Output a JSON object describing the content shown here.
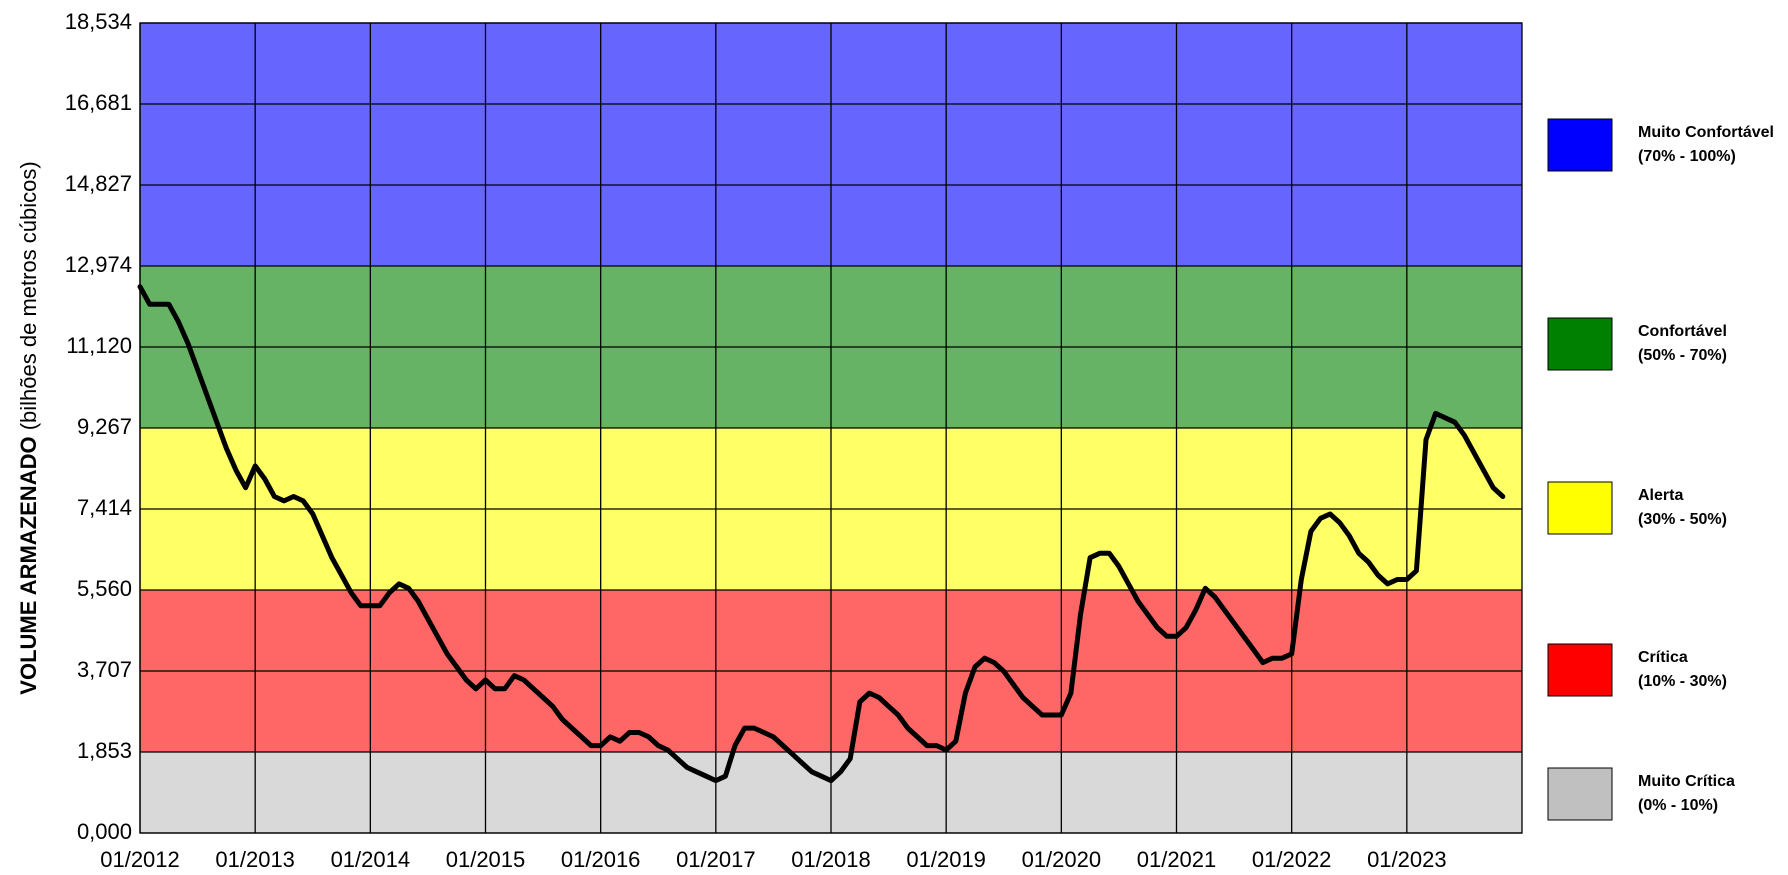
{
  "chart_data": {
    "type": "line",
    "ylabel_main": "VOLUME ARMAZENADO",
    "ylabel_unit": " (bilhões de metros cúbicos)",
    "color": "#000000",
    "grid": true,
    "legend": "right",
    "bands": [
      {
        "name": "Muito Confortável",
        "range": "(70% - 100%)",
        "from": 12.974,
        "to": 18.534,
        "color": "#0000ff"
      },
      {
        "name": "Confortável",
        "range": "(50% - 70%)",
        "from": 9.267,
        "to": 12.974,
        "color": "#008000"
      },
      {
        "name": "Alerta",
        "range": "(30% - 50%)",
        "from": 5.56,
        "to": 9.267,
        "color": "#ffff00"
      },
      {
        "name": "Crítica",
        "range": "(10% - 30%)",
        "from": 1.853,
        "to": 5.56,
        "color": "#ff0000"
      },
      {
        "name": "Muito Crítica",
        "range": "(0% - 10%)",
        "from": 0,
        "to": 1.853,
        "color": "#c0c0c0"
      }
    ],
    "ylim": [
      0,
      18.534
    ],
    "yticks": [
      {
        "value": 0,
        "label": "0,000"
      },
      {
        "value": 1.853,
        "label": "1,853"
      },
      {
        "value": 3.707,
        "label": "3,707"
      },
      {
        "value": 5.56,
        "label": "5,560"
      },
      {
        "value": 7.414,
        "label": "7,414"
      },
      {
        "value": 9.267,
        "label": "9,267"
      },
      {
        "value": 11.12,
        "label": "11,120"
      },
      {
        "value": 12.974,
        "label": "12,974"
      },
      {
        "value": 14.827,
        "label": "14,827"
      },
      {
        "value": 16.681,
        "label": "16,681"
      },
      {
        "value": 18.534,
        "label": "18,534"
      }
    ],
    "xlim": [
      "2012-01",
      "2024-01"
    ],
    "xticks": [
      {
        "value": "2012-01",
        "label": "01/2012"
      },
      {
        "value": "2013-01",
        "label": "01/2013"
      },
      {
        "value": "2014-01",
        "label": "01/2014"
      },
      {
        "value": "2015-01",
        "label": "01/2015"
      },
      {
        "value": "2016-01",
        "label": "01/2016"
      },
      {
        "value": "2017-01",
        "label": "01/2017"
      },
      {
        "value": "2018-01",
        "label": "01/2018"
      },
      {
        "value": "2019-01",
        "label": "01/2019"
      },
      {
        "value": "2020-01",
        "label": "01/2020"
      },
      {
        "value": "2021-01",
        "label": "01/2021"
      },
      {
        "value": "2022-01",
        "label": "01/2022"
      },
      {
        "value": "2023-01",
        "label": "01/2023"
      }
    ],
    "x": [
      "2012-01",
      "2012-02",
      "2012-03",
      "2012-04",
      "2012-05",
      "2012-06",
      "2012-07",
      "2012-08",
      "2012-09",
      "2012-10",
      "2012-11",
      "2012-12",
      "2013-01",
      "2013-02",
      "2013-03",
      "2013-04",
      "2013-05",
      "2013-06",
      "2013-07",
      "2013-08",
      "2013-09",
      "2013-10",
      "2013-11",
      "2013-12",
      "2014-01",
      "2014-02",
      "2014-03",
      "2014-04",
      "2014-05",
      "2014-06",
      "2014-07",
      "2014-08",
      "2014-09",
      "2014-10",
      "2014-11",
      "2014-12",
      "2015-01",
      "2015-02",
      "2015-03",
      "2015-04",
      "2015-05",
      "2015-06",
      "2015-07",
      "2015-08",
      "2015-09",
      "2015-10",
      "2015-11",
      "2015-12",
      "2016-01",
      "2016-02",
      "2016-03",
      "2016-04",
      "2016-05",
      "2016-06",
      "2016-07",
      "2016-08",
      "2016-09",
      "2016-10",
      "2016-11",
      "2016-12",
      "2017-01",
      "2017-02",
      "2017-03",
      "2017-04",
      "2017-05",
      "2017-06",
      "2017-07",
      "2017-08",
      "2017-09",
      "2017-10",
      "2017-11",
      "2017-12",
      "2018-01",
      "2018-02",
      "2018-03",
      "2018-04",
      "2018-05",
      "2018-06",
      "2018-07",
      "2018-08",
      "2018-09",
      "2018-10",
      "2018-11",
      "2018-12",
      "2019-01",
      "2019-02",
      "2019-03",
      "2019-04",
      "2019-05",
      "2019-06",
      "2019-07",
      "2019-08",
      "2019-09",
      "2019-10",
      "2019-11",
      "2019-12",
      "2020-01",
      "2020-02",
      "2020-03",
      "2020-04",
      "2020-05",
      "2020-06",
      "2020-07",
      "2020-08",
      "2020-09",
      "2020-10",
      "2020-11",
      "2020-12",
      "2021-01",
      "2021-02",
      "2021-03",
      "2021-04",
      "2021-05",
      "2021-06",
      "2021-07",
      "2021-08",
      "2021-09",
      "2021-10",
      "2021-11",
      "2021-12",
      "2022-01",
      "2022-02",
      "2022-03",
      "2022-04",
      "2022-05",
      "2022-06",
      "2022-07",
      "2022-08",
      "2022-09",
      "2022-10",
      "2022-11",
      "2022-12",
      "2023-01",
      "2023-02",
      "2023-03",
      "2023-04",
      "2023-05",
      "2023-06",
      "2023-07",
      "2023-08",
      "2023-09",
      "2023-10",
      "2023-11"
    ],
    "values": [
      12.5,
      12.1,
      12.1,
      12.1,
      11.7,
      11.2,
      10.6,
      10.0,
      9.4,
      8.8,
      8.3,
      7.9,
      8.4,
      8.1,
      7.7,
      7.6,
      7.7,
      7.6,
      7.3,
      6.8,
      6.3,
      5.9,
      5.5,
      5.2,
      5.2,
      5.2,
      5.5,
      5.7,
      5.6,
      5.3,
      4.9,
      4.5,
      4.1,
      3.8,
      3.5,
      3.3,
      3.5,
      3.3,
      3.3,
      3.6,
      3.5,
      3.3,
      3.1,
      2.9,
      2.6,
      2.4,
      2.2,
      2.0,
      2.0,
      2.2,
      2.1,
      2.3,
      2.3,
      2.2,
      2.0,
      1.9,
      1.7,
      1.5,
      1.4,
      1.3,
      1.2,
      1.3,
      2.0,
      2.4,
      2.4,
      2.3,
      2.2,
      2.0,
      1.8,
      1.6,
      1.4,
      1.3,
      1.2,
      1.4,
      1.7,
      3.0,
      3.2,
      3.1,
      2.9,
      2.7,
      2.4,
      2.2,
      2.0,
      2.0,
      1.9,
      2.1,
      3.2,
      3.8,
      4.0,
      3.9,
      3.7,
      3.4,
      3.1,
      2.9,
      2.7,
      2.7,
      2.7,
      3.2,
      5.0,
      6.3,
      6.4,
      6.4,
      6.1,
      5.7,
      5.3,
      5.0,
      4.7,
      4.5,
      4.5,
      4.7,
      5.1,
      5.6,
      5.4,
      5.1,
      4.8,
      4.5,
      4.2,
      3.9,
      4.0,
      4.0,
      4.1,
      5.8,
      6.9,
      7.2,
      7.3,
      7.1,
      6.8,
      6.4,
      6.2,
      5.9,
      5.7,
      5.8,
      5.8,
      6.0,
      9.0,
      9.6,
      9.5,
      9.4,
      9.1,
      8.7,
      8.3,
      7.9,
      7.7
    ]
  }
}
